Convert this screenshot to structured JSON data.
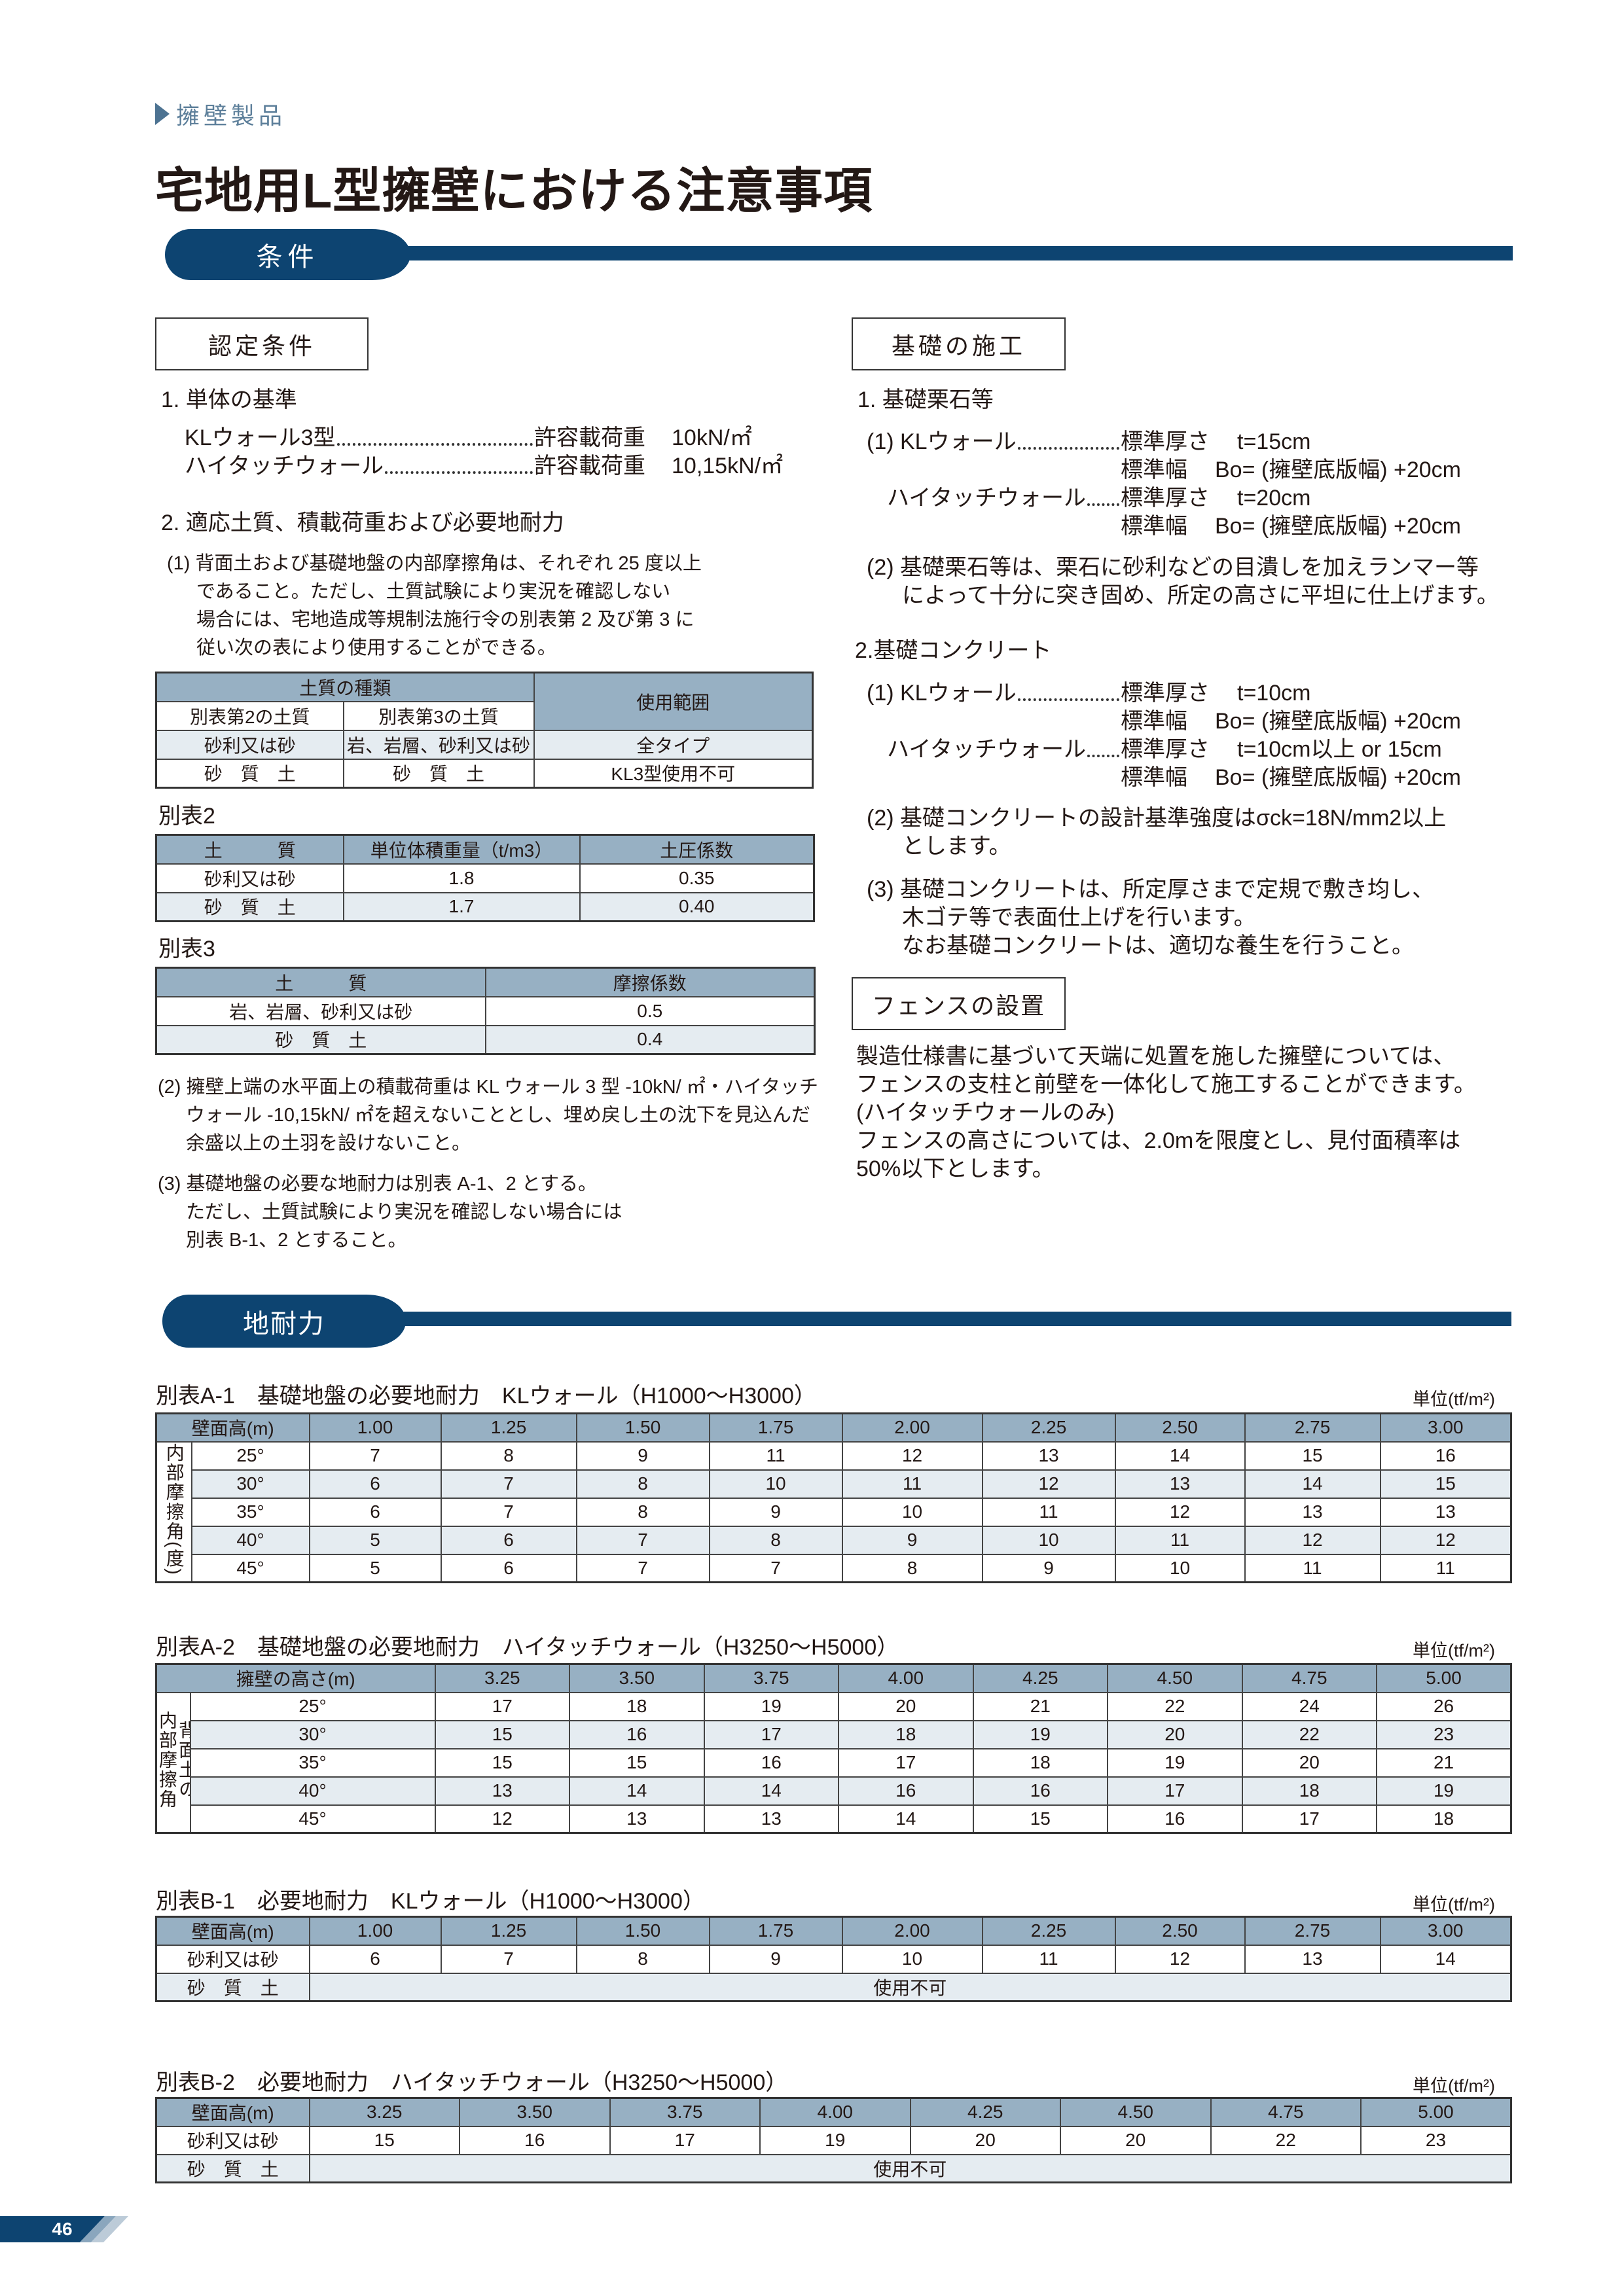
{
  "breadcrumb": "擁壁製品",
  "title": "宅地用L型擁壁における注意事項",
  "sections": {
    "conditions": "条件",
    "bearing": "地耐力"
  },
  "colors": {
    "navy": "#0d4471",
    "header_cell": "#97b0c3",
    "alt_row": "#e5ecf1",
    "breadcrumb": "#5d7f9a"
  },
  "left": {
    "box_title": "認定条件",
    "h1": "1. 単体の基準",
    "loads": [
      {
        "name": "KLウォール3型",
        "label": "許容載荷重",
        "value": "10kN/㎡"
      },
      {
        "name": "ハイタッチウォール",
        "label": "許容載荷重",
        "value": "10,15kN/㎡"
      }
    ],
    "h2": "2. 適応土質、積載荷重および必要地耐力",
    "p1": [
      "(1) 背面土および基礎地盤の内部摩擦角は、それぞれ 25 度以上",
      "であること。ただし、土質試験により実況を確認しない",
      "場合には、宅地造成等規制法施行令の別表第 2 及び第 3 に",
      "従い次の表により使用することができる。"
    ],
    "soil_table": {
      "group_header": "土質の種類",
      "use_header": "使用範囲",
      "sub_headers": [
        "別表第2の土質",
        "別表第3の土質"
      ],
      "rows": [
        [
          "砂利又は砂",
          "岩、岩層、砂利又は砂",
          "全タイプ"
        ],
        [
          "砂　質　土",
          "砂　質　土",
          "KL3型使用不可"
        ]
      ]
    },
    "table2": {
      "caption": "別表2",
      "headers": [
        "土　　　質",
        "単位体積重量（t/m3）",
        "土圧係数"
      ],
      "rows": [
        [
          "砂利又は砂",
          "1.8",
          "0.35"
        ],
        [
          "砂　質　土",
          "1.7",
          "0.40"
        ]
      ]
    },
    "table3": {
      "caption": "別表3",
      "headers": [
        "土　　　質",
        "摩擦係数"
      ],
      "rows": [
        [
          "岩、岩層、砂利又は砂",
          "0.5"
        ],
        [
          "砂　質　土",
          "0.4"
        ]
      ]
    },
    "p2": [
      "(2) 擁壁上端の水平面上の積載荷重は KL ウォール 3 型 -10kN/ ㎡・ハイタッチ",
      "ウォール -10,15kN/ ㎡を超えないこととし、埋め戻し土の沈下を見込んだ",
      "余盛以上の土羽を設けないこと。"
    ],
    "p3": [
      "(3) 基礎地盤の必要な地耐力は別表 A-1、2 とする。",
      "ただし、土質試験により実況を確認しない場合には",
      "別表 B-1、2 とすること。"
    ]
  },
  "right": {
    "box_title": "基礎の施工",
    "h1": "1. 基礎栗石等",
    "gravel": [
      {
        "prefix": "(1) KLウォール",
        "l1": "標準厚さ",
        "v1": "t=15cm",
        "l2": "標準幅",
        "v2": "Bo= (擁壁底版幅) +20cm"
      },
      {
        "prefix": "ハイタッチウォール",
        "l1": "標準厚さ",
        "v1": "t=20cm",
        "l2": "標準幅",
        "v2": "Bo= (擁壁底版幅) +20cm"
      }
    ],
    "gravel_p2": [
      "(2) 基礎栗石等は、栗石に砂利などの目潰しを加えランマー等",
      "によって十分に突き固め、所定の高さに平坦に仕上げます。"
    ],
    "h2": "2.基礎コンクリート",
    "concrete": [
      {
        "prefix": "(1) KLウォール",
        "l1": "標準厚さ",
        "v1": "t=10cm",
        "l2": "標準幅",
        "v2": "Bo= (擁壁底版幅) +20cm"
      },
      {
        "prefix": "ハイタッチウォール",
        "l1": "標準厚さ",
        "v1": "t=10cm以上 or 15cm",
        "l2": "標準幅",
        "v2": "Bo= (擁壁底版幅) +20cm"
      }
    ],
    "concrete_p2": [
      "(2) 基礎コンクリートの設計基準強度はσck=18N/mm2以上",
      "とします。"
    ],
    "concrete_p3": [
      "(3) 基礎コンクリートは、所定厚さまで定規で敷き均し、",
      "木ゴテ等で表面仕上げを行います。",
      "なお基礎コンクリートは、適切な養生を行うこと。"
    ],
    "fence_title": "フェンスの設置",
    "fence_p": [
      "製造仕様書に基づいて天端に処置を施した擁壁については、",
      "フェンスの支柱と前壁を一体化して施工することができます。",
      "(ハイタッチウォールのみ)",
      "フェンスの高さについては、2.0mを限度とし、見付面積率は",
      "50%以下とします。"
    ]
  },
  "tableA1": {
    "caption": "別表A-1　基礎地盤の必要地耐力　KLウォール（H1000〜H3000）",
    "unit": "単位(tf/m²)",
    "corner": "壁面高(m)",
    "vlabel": "内部摩擦角(度)",
    "columns": [
      "1.00",
      "1.25",
      "1.50",
      "1.75",
      "2.00",
      "2.25",
      "2.50",
      "2.75",
      "3.00"
    ],
    "rows": [
      {
        "angle": "25°",
        "values": [
          "7",
          "8",
          "9",
          "11",
          "12",
          "13",
          "14",
          "15",
          "16"
        ]
      },
      {
        "angle": "30°",
        "values": [
          "6",
          "7",
          "8",
          "10",
          "11",
          "12",
          "13",
          "14",
          "15"
        ]
      },
      {
        "angle": "35°",
        "values": [
          "6",
          "7",
          "8",
          "9",
          "10",
          "11",
          "12",
          "13",
          "13"
        ]
      },
      {
        "angle": "40°",
        "values": [
          "5",
          "6",
          "7",
          "8",
          "9",
          "10",
          "11",
          "12",
          "12"
        ]
      },
      {
        "angle": "45°",
        "values": [
          "5",
          "6",
          "7",
          "7",
          "8",
          "9",
          "10",
          "11",
          "11"
        ]
      }
    ]
  },
  "tableA2": {
    "caption": "別表A-2　基礎地盤の必要地耐力　ハイタッチウォール（H3250〜H5000）",
    "unit": "単位(tf/m²)",
    "corner": "擁壁の高さ(m)",
    "vlabel_1": "背面土の",
    "vlabel_2": "内部摩擦角",
    "columns": [
      "3.25",
      "3.50",
      "3.75",
      "4.00",
      "4.25",
      "4.50",
      "4.75",
      "5.00"
    ],
    "rows": [
      {
        "angle": "25°",
        "values": [
          "17",
          "18",
          "19",
          "20",
          "21",
          "22",
          "24",
          "26"
        ]
      },
      {
        "angle": "30°",
        "values": [
          "15",
          "16",
          "17",
          "18",
          "19",
          "20",
          "22",
          "23"
        ]
      },
      {
        "angle": "35°",
        "values": [
          "15",
          "15",
          "16",
          "17",
          "18",
          "19",
          "20",
          "21"
        ]
      },
      {
        "angle": "40°",
        "values": [
          "13",
          "14",
          "14",
          "16",
          "16",
          "17",
          "18",
          "19"
        ]
      },
      {
        "angle": "45°",
        "values": [
          "12",
          "13",
          "13",
          "14",
          "15",
          "16",
          "17",
          "18"
        ]
      }
    ]
  },
  "tableB1": {
    "caption": "別表B-1　必要地耐力　KLウォール（H1000〜H3000）",
    "unit": "単位(tf/m²)",
    "corner": "壁面高(m)",
    "columns": [
      "1.00",
      "1.25",
      "1.50",
      "1.75",
      "2.00",
      "2.25",
      "2.50",
      "2.75",
      "3.00"
    ],
    "row1_label": "砂利又は砂",
    "row1": [
      "6",
      "7",
      "8",
      "9",
      "10",
      "11",
      "12",
      "13",
      "14"
    ],
    "row2_label": "砂　質　土",
    "row2_value": "使用不可"
  },
  "tableB2": {
    "caption": "別表B-2　必要地耐力　ハイタッチウォール（H3250〜H5000）",
    "unit": "単位(tf/m²)",
    "corner": "壁面高(m)",
    "columns": [
      "3.25",
      "3.50",
      "3.75",
      "4.00",
      "4.25",
      "4.50",
      "4.75",
      "5.00"
    ],
    "row1_label": "砂利又は砂",
    "row1": [
      "15",
      "16",
      "17",
      "19",
      "20",
      "20",
      "22",
      "23"
    ],
    "row2_label": "砂　質　土",
    "row2_value": "使用不可"
  },
  "page_number": "46"
}
